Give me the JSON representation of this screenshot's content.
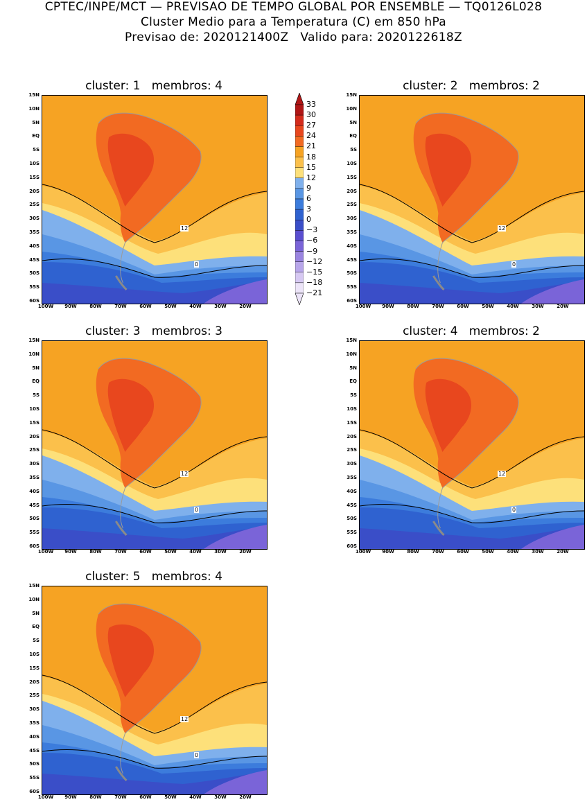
{
  "header": {
    "line1": "CPTEC/INPE/MCT — PREVISAO DE TEMPO GLOBAL POR ENSEMBLE — TQ0126L028",
    "line2": "Cluster Medio para a Temperatura (C) em 850 hPa",
    "line3": "Previsao de: 2020121400Z   Valido para: 2020122618Z"
  },
  "axis": {
    "lat_labels": [
      "15N",
      "10N",
      "5N",
      "EQ",
      "5S",
      "10S",
      "15S",
      "20S",
      "25S",
      "30S",
      "35S",
      "40S",
      "45S",
      "50S",
      "55S",
      "60S"
    ],
    "lon_labels": [
      "100W",
      "90W",
      "80W",
      "70W",
      "60W",
      "50W",
      "40W",
      "30W",
      "20W"
    ]
  },
  "colorbar": {
    "labels": [
      "33",
      "30",
      "27",
      "24",
      "21",
      "18",
      "15",
      "12",
      "9",
      "6",
      "3",
      "0",
      "−3",
      "−6",
      "−9",
      "−12",
      "−15",
      "−18",
      "−21"
    ],
    "colors": [
      "#b01616",
      "#d42b1c",
      "#e8471e",
      "#f26a22",
      "#f6a323",
      "#fbc04b",
      "#fde07a",
      "#7fb0ec",
      "#5996e4",
      "#3c7cdc",
      "#2f62d0",
      "#3a4ec8",
      "#5a4ed0",
      "#7a64d8",
      "#9a84e0",
      "#b8a6ea",
      "#d6c8f2",
      "#ece4f8"
    ]
  },
  "contour_labels": {
    "warm": "12",
    "cold": "0"
  },
  "panels": [
    {
      "title": "cluster: 1   membros: 4"
    },
    {
      "title": "cluster: 2   membros: 2"
    },
    {
      "title": "cluster: 3   membros: 3"
    },
    {
      "title": "cluster: 4   membros: 2"
    },
    {
      "title": "cluster: 5   membros: 4"
    }
  ]
}
